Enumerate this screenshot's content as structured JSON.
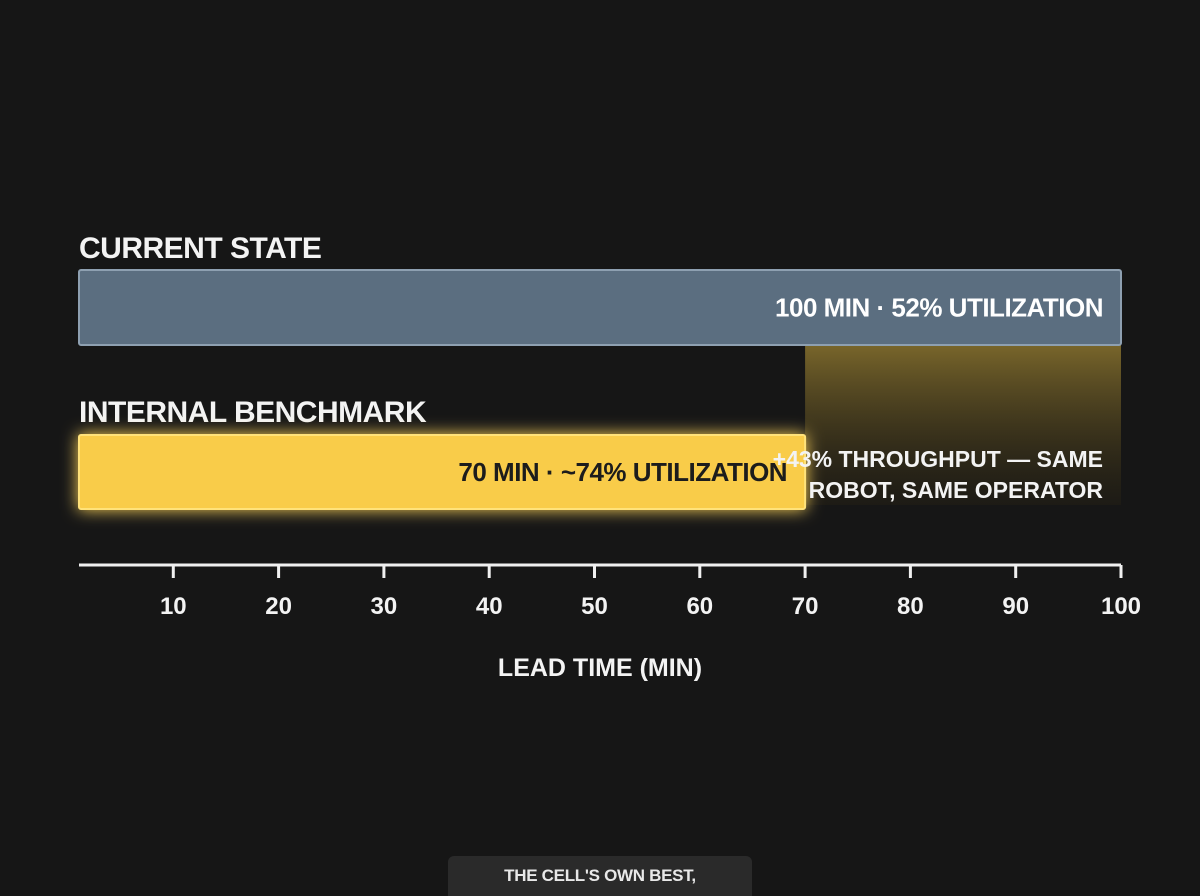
{
  "chart_data": {
    "type": "bar",
    "orientation": "horizontal",
    "categories": [
      "CURRENT STATE",
      "INTERNAL BENCHMARK"
    ],
    "values": [
      100,
      70
    ],
    "value_labels": [
      "100 MIN · 52% UTILIZATION",
      "70 MIN · ~74% UTILIZATION"
    ],
    "colors": [
      "#5b6e80",
      "#f9cc4a"
    ],
    "gap_annotation": [
      "+43% THROUGHPUT — SAME",
      "ROBOT, SAME OPERATOR"
    ],
    "xlabel": "LEAD TIME (MIN)",
    "xticks": [
      10,
      20,
      30,
      40,
      50,
      60,
      70,
      80,
      90,
      100
    ],
    "xlim": [
      0,
      100
    ],
    "grid": false
  },
  "caption": "THE CELL'S OWN BEST, REPEATABLE DAY"
}
